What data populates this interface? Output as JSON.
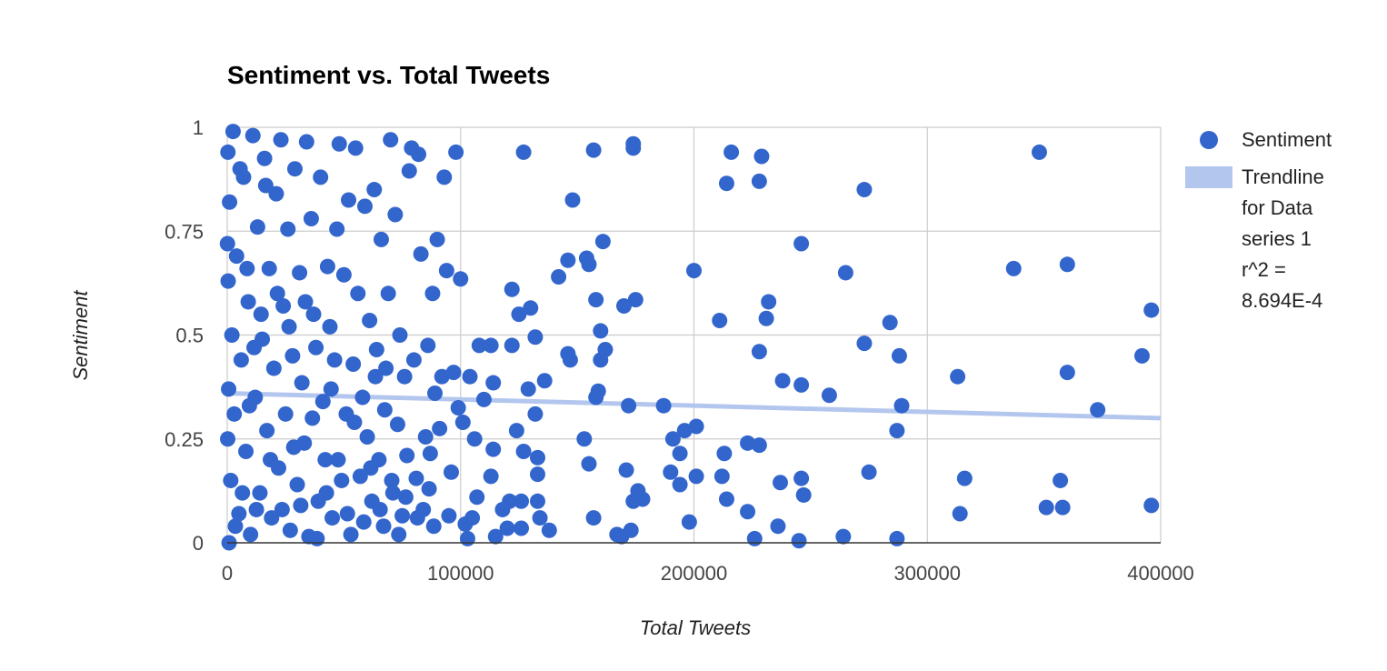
{
  "chart_data": {
    "type": "scatter",
    "title": "Sentiment vs. Total Tweets",
    "xlabel": "Total Tweets",
    "ylabel": "Sentiment",
    "xlim": [
      0,
      400000
    ],
    "ylim": [
      0,
      1
    ],
    "x_ticks": [
      "0",
      "100000",
      "200000",
      "300000",
      "400000"
    ],
    "y_ticks": [
      "0",
      "0.25",
      "0.5",
      "0.75",
      "1"
    ],
    "grid": true,
    "legend_position": "right",
    "colors": {
      "points": "#3366cc",
      "trendline": "#b3c6ee",
      "grid": "#cccccc",
      "axis": "#333333"
    },
    "series": [
      {
        "name": "Sentiment",
        "points": [
          [
            348000,
            0.94
          ],
          [
            396000,
            0.56
          ],
          [
            392000,
            0.45
          ],
          [
            396000,
            0.09
          ],
          [
            373000,
            0.32
          ],
          [
            360000,
            0.67
          ],
          [
            360000,
            0.41
          ],
          [
            357000,
            0.15
          ],
          [
            351000,
            0.085
          ],
          [
            358000,
            0.085
          ],
          [
            337000,
            0.66
          ],
          [
            316000,
            0.155
          ],
          [
            314000,
            0.07
          ],
          [
            313000,
            0.4
          ],
          [
            289000,
            0.33
          ],
          [
            288000,
            0.45
          ],
          [
            287000,
            0.27
          ],
          [
            287000,
            0.01
          ],
          [
            284000,
            0.53
          ],
          [
            275000,
            0.17
          ],
          [
            273000,
            0.85
          ],
          [
            273000,
            0.48
          ],
          [
            265000,
            0.65
          ],
          [
            264000,
            0.015
          ],
          [
            258000,
            0.355
          ],
          [
            246000,
            0.72
          ],
          [
            246000,
            0.38
          ],
          [
            246000,
            0.155
          ],
          [
            247000,
            0.115
          ],
          [
            245000,
            0.005
          ],
          [
            238000,
            0.39
          ],
          [
            237000,
            0.145
          ],
          [
            236000,
            0.04
          ],
          [
            232000,
            0.58
          ],
          [
            231000,
            0.54
          ],
          [
            229000,
            0.93
          ],
          [
            228000,
            0.87
          ],
          [
            228000,
            0.46
          ],
          [
            228000,
            0.235
          ],
          [
            226000,
            0.01
          ],
          [
            223000,
            0.24
          ],
          [
            223000,
            0.075
          ],
          [
            216000,
            0.94
          ],
          [
            214000,
            0.865
          ],
          [
            214000,
            0.105
          ],
          [
            213000,
            0.215
          ],
          [
            212000,
            0.16
          ],
          [
            211000,
            0.535
          ],
          [
            200000,
            0.655
          ],
          [
            201000,
            0.28
          ],
          [
            201000,
            0.16
          ],
          [
            198000,
            0.05
          ],
          [
            196000,
            0.27
          ],
          [
            194000,
            0.215
          ],
          [
            194000,
            0.14
          ],
          [
            191000,
            0.25
          ],
          [
            190000,
            0.17
          ],
          [
            187000,
            0.33
          ],
          [
            174000,
            0.96
          ],
          [
            174000,
            0.95
          ],
          [
            175000,
            0.585
          ],
          [
            176000,
            0.125
          ],
          [
            178000,
            0.105
          ],
          [
            174000,
            0.1
          ],
          [
            173000,
            0.03
          ],
          [
            172000,
            0.33
          ],
          [
            171000,
            0.175
          ],
          [
            170000,
            0.57
          ],
          [
            169000,
            0.015
          ],
          [
            167000,
            0.02
          ],
          [
            162000,
            0.465
          ],
          [
            161000,
            0.725
          ],
          [
            160000,
            0.44
          ],
          [
            160000,
            0.51
          ],
          [
            159000,
            0.365
          ],
          [
            158000,
            0.35
          ],
          [
            157000,
            0.945
          ],
          [
            158000,
            0.585
          ],
          [
            157000,
            0.06
          ],
          [
            155000,
            0.67
          ],
          [
            155000,
            0.19
          ],
          [
            154000,
            0.685
          ],
          [
            153000,
            0.25
          ],
          [
            148000,
            0.825
          ],
          [
            147000,
            0.44
          ],
          [
            146000,
            0.455
          ],
          [
            146000,
            0.68
          ],
          [
            142000,
            0.64
          ],
          [
            138000,
            0.03
          ],
          [
            136000,
            0.39
          ],
          [
            134000,
            0.06
          ],
          [
            133000,
            0.205
          ],
          [
            133000,
            0.165
          ],
          [
            133000,
            0.1
          ],
          [
            132000,
            0.495
          ],
          [
            132000,
            0.31
          ],
          [
            130000,
            0.565
          ],
          [
            129000,
            0.37
          ],
          [
            127000,
            0.94
          ],
          [
            127000,
            0.22
          ],
          [
            126000,
            0.1
          ],
          [
            126000,
            0.035
          ],
          [
            125000,
            0.55
          ],
          [
            124000,
            0.27
          ],
          [
            122000,
            0.61
          ],
          [
            122000,
            0.475
          ],
          [
            121000,
            0.1
          ],
          [
            120000,
            0.035
          ],
          [
            118000,
            0.08
          ],
          [
            115000,
            0.015
          ],
          [
            114000,
            0.385
          ],
          [
            114000,
            0.225
          ],
          [
            113000,
            0.475
          ],
          [
            113000,
            0.16
          ],
          [
            110000,
            0.345
          ],
          [
            108000,
            0.475
          ],
          [
            107000,
            0.11
          ],
          [
            106000,
            0.25
          ],
          [
            105000,
            0.06
          ],
          [
            104000,
            0.4
          ],
          [
            103000,
            0.01
          ],
          [
            102000,
            0.045
          ],
          [
            101000,
            0.29
          ],
          [
            100000,
            0.635
          ],
          [
            99000,
            0.325
          ],
          [
            98000,
            0.94
          ],
          [
            97000,
            0.41
          ],
          [
            96000,
            0.17
          ],
          [
            95000,
            0.065
          ],
          [
            94000,
            0.655
          ],
          [
            93000,
            0.88
          ],
          [
            92000,
            0.4
          ],
          [
            91000,
            0.275
          ],
          [
            90000,
            0.73
          ],
          [
            89000,
            0.36
          ],
          [
            88000,
            0.6
          ],
          [
            87000,
            0.215
          ],
          [
            86000,
            0.475
          ],
          [
            85000,
            0.255
          ],
          [
            84000,
            0.08
          ],
          [
            83000,
            0.695
          ],
          [
            82000,
            0.935
          ],
          [
            81000,
            0.155
          ],
          [
            80000,
            0.44
          ],
          [
            79000,
            0.95
          ],
          [
            78000,
            0.895
          ],
          [
            77000,
            0.21
          ],
          [
            76000,
            0.4
          ],
          [
            75000,
            0.065
          ],
          [
            74000,
            0.5
          ],
          [
            73000,
            0.285
          ],
          [
            72000,
            0.79
          ],
          [
            71000,
            0.12
          ],
          [
            70000,
            0.97
          ],
          [
            69000,
            0.6
          ],
          [
            68000,
            0.42
          ],
          [
            67000,
            0.04
          ],
          [
            66000,
            0.73
          ],
          [
            65000,
            0.2
          ],
          [
            64000,
            0.465
          ],
          [
            63000,
            0.85
          ],
          [
            62000,
            0.1
          ],
          [
            61000,
            0.535
          ],
          [
            60000,
            0.255
          ],
          [
            59000,
            0.81
          ],
          [
            58000,
            0.35
          ],
          [
            57000,
            0.16
          ],
          [
            56000,
            0.6
          ],
          [
            55000,
            0.95
          ],
          [
            54000,
            0.43
          ],
          [
            53000,
            0.02
          ],
          [
            52000,
            0.825
          ],
          [
            51000,
            0.31
          ],
          [
            50000,
            0.645
          ],
          [
            49000,
            0.15
          ],
          [
            48000,
            0.96
          ],
          [
            47000,
            0.755
          ],
          [
            46000,
            0.44
          ],
          [
            45000,
            0.06
          ],
          [
            44000,
            0.52
          ],
          [
            43000,
            0.665
          ],
          [
            42000,
            0.2
          ],
          [
            41000,
            0.34
          ],
          [
            40000,
            0.88
          ],
          [
            39000,
            0.1
          ],
          [
            38000,
            0.47
          ],
          [
            37000,
            0.55
          ],
          [
            36000,
            0.78
          ],
          [
            35000,
            0.015
          ],
          [
            34000,
            0.965
          ],
          [
            33000,
            0.24
          ],
          [
            32000,
            0.385
          ],
          [
            31000,
            0.65
          ],
          [
            30000,
            0.14
          ],
          [
            29000,
            0.9
          ],
          [
            28000,
            0.45
          ],
          [
            27000,
            0.03
          ],
          [
            26000,
            0.755
          ],
          [
            25000,
            0.31
          ],
          [
            24000,
            0.57
          ],
          [
            23000,
            0.97
          ],
          [
            22000,
            0.18
          ],
          [
            21000,
            0.84
          ],
          [
            20000,
            0.42
          ],
          [
            19000,
            0.06
          ],
          [
            18000,
            0.66
          ],
          [
            17000,
            0.27
          ],
          [
            16000,
            0.925
          ],
          [
            15000,
            0.49
          ],
          [
            14000,
            0.12
          ],
          [
            13000,
            0.76
          ],
          [
            12000,
            0.35
          ],
          [
            11000,
            0.98
          ],
          [
            10000,
            0.02
          ],
          [
            9000,
            0.58
          ],
          [
            8000,
            0.22
          ],
          [
            7000,
            0.88
          ],
          [
            6000,
            0.44
          ],
          [
            5000,
            0.07
          ],
          [
            4000,
            0.69
          ],
          [
            3000,
            0.31
          ],
          [
            2500,
            0.99
          ],
          [
            2000,
            0.5
          ],
          [
            1500,
            0.15
          ],
          [
            1000,
            0.82
          ],
          [
            800,
            0.0
          ],
          [
            600,
            0.37
          ],
          [
            400,
            0.63
          ],
          [
            300,
            0.94
          ],
          [
            200,
            0.25
          ],
          [
            100,
            0.72
          ],
          [
            3500,
            0.04
          ],
          [
            5500,
            0.9
          ],
          [
            6500,
            0.12
          ],
          [
            8500,
            0.66
          ],
          [
            9500,
            0.33
          ],
          [
            11500,
            0.47
          ],
          [
            12500,
            0.08
          ],
          [
            14500,
            0.55
          ],
          [
            16500,
            0.86
          ],
          [
            18500,
            0.2
          ],
          [
            21500,
            0.6
          ],
          [
            23500,
            0.08
          ],
          [
            26500,
            0.52
          ],
          [
            28500,
            0.23
          ],
          [
            31500,
            0.09
          ],
          [
            33500,
            0.58
          ],
          [
            36500,
            0.3
          ],
          [
            38500,
            0.01
          ],
          [
            42500,
            0.12
          ],
          [
            44500,
            0.37
          ],
          [
            47500,
            0.2
          ],
          [
            51500,
            0.07
          ],
          [
            54500,
            0.29
          ],
          [
            58500,
            0.05
          ],
          [
            61500,
            0.18
          ],
          [
            63500,
            0.4
          ],
          [
            65500,
            0.08
          ],
          [
            67500,
            0.32
          ],
          [
            70500,
            0.15
          ],
          [
            73500,
            0.02
          ],
          [
            76500,
            0.11
          ],
          [
            81500,
            0.06
          ],
          [
            86500,
            0.13
          ],
          [
            88500,
            0.04
          ]
        ]
      },
      {
        "name": "Trendline for Data series 1 r^2 = 8.694E-4",
        "trendline": {
          "x": [
            0,
            400000
          ],
          "y": [
            0.36,
            0.3
          ]
        }
      }
    ],
    "legend": {
      "entries": [
        {
          "label_lines": [
            "Sentiment"
          ]
        },
        {
          "label_lines": [
            "Trendline",
            "for Data",
            "series 1",
            "r^2 =",
            "8.694E-4"
          ]
        }
      ]
    }
  }
}
